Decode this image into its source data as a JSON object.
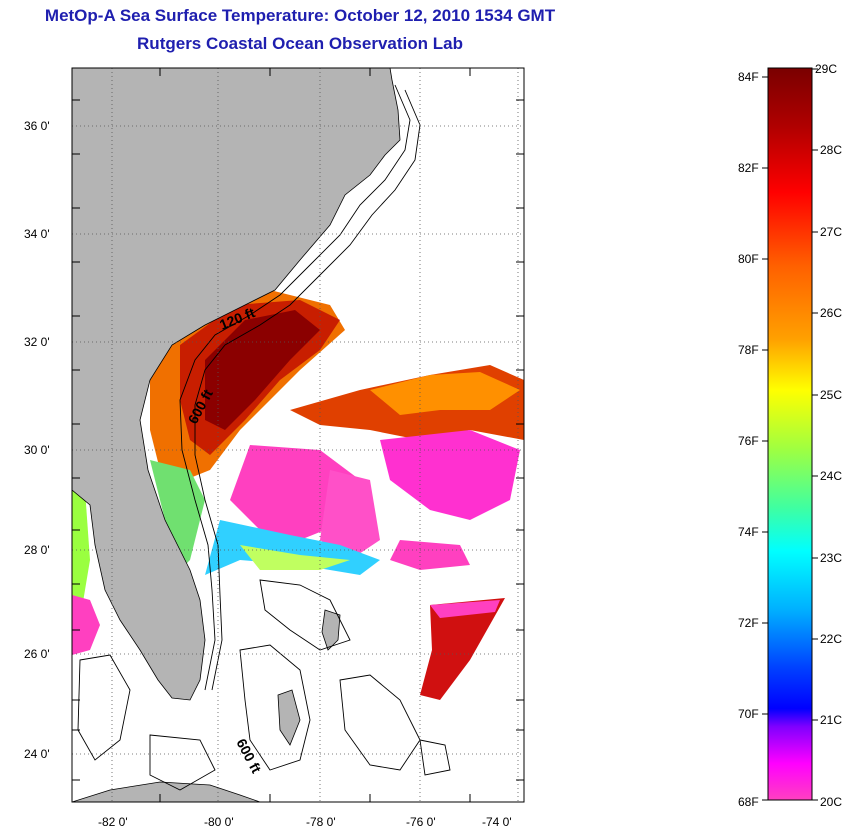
{
  "header": {
    "title": "MetOp-A Sea Surface Temperature:  October 12, 2010 1534 GMT",
    "subtitle": "Rutgers Coastal Ocean Observation Lab"
  },
  "map": {
    "lon_ticks": [
      "-82 0'",
      "-80 0'",
      "-78 0'",
      "-76 0'",
      "-74 0'"
    ],
    "lat_ticks": [
      "36 0'",
      "34 0'",
      "32 0'",
      "30 0'",
      "28 0'",
      "26 0'",
      "24 0'"
    ],
    "contour_labels": [
      "120 ft",
      "600 ft",
      "600 ft"
    ],
    "colors": {
      "land": "#b4b4b4",
      "ocean_missing": "#ffffff",
      "grid": "#555555"
    }
  },
  "colorbar": {
    "fahrenheit_labels": [
      "84F",
      "82F",
      "80F",
      "78F",
      "76F",
      "74F",
      "72F",
      "70F",
      "68F"
    ],
    "celsius_labels": [
      "29C",
      "28C",
      "27C",
      "26C",
      "25C",
      "24C",
      "23C",
      "22C",
      "21C",
      "20C"
    ],
    "gradient_colors": [
      "#7a0000",
      "#c00000",
      "#ff0000",
      "#ff5a00",
      "#ffa000",
      "#ffff00",
      "#7fff3f",
      "#00ffff",
      "#00c8ff",
      "#0060ff",
      "#0000ff",
      "#8000ff",
      "#ff00ff",
      "#ff40c0"
    ]
  }
}
